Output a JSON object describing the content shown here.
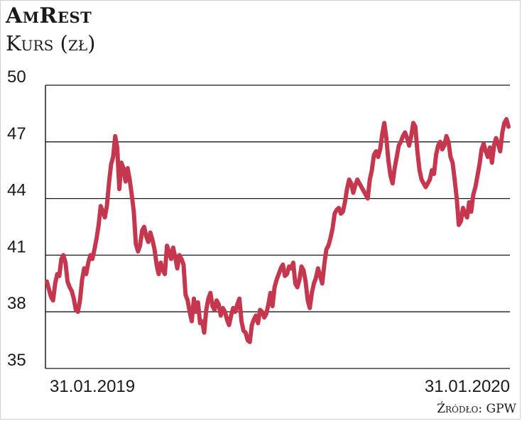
{
  "chart_data": {
    "type": "line",
    "title": "AmRest",
    "subtitle": "Kurs (zł)",
    "source": "Źródło: GPW",
    "yticks": [
      "50",
      "47",
      "44",
      "41",
      "38",
      "35"
    ],
    "ylim": [
      35,
      50
    ],
    "x_labels": [
      "31.01.2019",
      "31.01.2020"
    ],
    "x_range": [
      0,
      252
    ],
    "line_color": "#c5374f",
    "grid": true,
    "series": [
      {
        "values": [
          39.6,
          39.2,
          38.8,
          38.6,
          39.5,
          40.0,
          39.9,
          40.8,
          41.0,
          40.6,
          39.6,
          39.3,
          39.1,
          38.7,
          38.1,
          38.0,
          38.6,
          39.7,
          40.3,
          40.0,
          40.6,
          41.0,
          40.8,
          41.3,
          41.9,
          42.6,
          43.6,
          43.3,
          43.0,
          43.6,
          44.8,
          45.8,
          46.2,
          47.3,
          46.7,
          44.5,
          45.9,
          45.6,
          44.9,
          45.6,
          45.0,
          44.2,
          43.3,
          41.6,
          41.2,
          41.5,
          42.3,
          42.5,
          42.0,
          41.7,
          42.2,
          41.8,
          41.3,
          40.5,
          40.0,
          40.6,
          40.2,
          40.0,
          41.5,
          41.2,
          40.8,
          41.4,
          40.9,
          40.3,
          41.0,
          40.8,
          40.5,
          38.9,
          38.6,
          38.0,
          37.5,
          38.7,
          38.0,
          38.5,
          37.4,
          37.5,
          36.9,
          38.1,
          38.7,
          39.0,
          38.3,
          38.1,
          38.6,
          38.4,
          37.8,
          38.2,
          38.0,
          37.6,
          37.3,
          37.8,
          38.2,
          38.0,
          38.4,
          38.7,
          37.5,
          37.0,
          36.9,
          36.5,
          36.4,
          37.3,
          37.6,
          37.8,
          37.4,
          38.1,
          38.0,
          37.7,
          37.9,
          38.4,
          39.0,
          38.3,
          39.3,
          39.7,
          40.0,
          40.3,
          40.5,
          39.9,
          40.0,
          40.4,
          40.3,
          40.6,
          39.5,
          39.3,
          39.7,
          40.4,
          40.2,
          39.6,
          38.6,
          38.2,
          39.0,
          39.5,
          39.8,
          40.3,
          39.9,
          39.5,
          40.5,
          41.3,
          41.5,
          41.9,
          42.4,
          43.2,
          43.4,
          43.5,
          43.2,
          43.3,
          43.8,
          44.5,
          45.0,
          44.8,
          44.3,
          44.7,
          45.0,
          44.8,
          44.6,
          44.4,
          44.2,
          44.0,
          45.0,
          45.5,
          46.3,
          46.5,
          46.2,
          46.6,
          47.4,
          48.0,
          47.2,
          46.0,
          45.2,
          44.8,
          45.6,
          46.2,
          46.8,
          47.0,
          47.3,
          47.5,
          47.2,
          46.8,
          47.3,
          48.0,
          47.8,
          46.5,
          45.5,
          45.0,
          44.8,
          44.6,
          44.8,
          45.0,
          45.5,
          45.3,
          46.3,
          46.8,
          47.0,
          46.6,
          46.8,
          47.3,
          47.0,
          46.2,
          45.9,
          45.0,
          44.0,
          42.6,
          42.8,
          43.5,
          43.2,
          43.0,
          43.8,
          43.3,
          44.2,
          44.6,
          45.2,
          45.8,
          46.6,
          46.9,
          46.5,
          46.2,
          46.7,
          45.9,
          46.8,
          47.2,
          46.9,
          46.5,
          47.5,
          48.0,
          48.2,
          47.8
        ]
      }
    ]
  }
}
